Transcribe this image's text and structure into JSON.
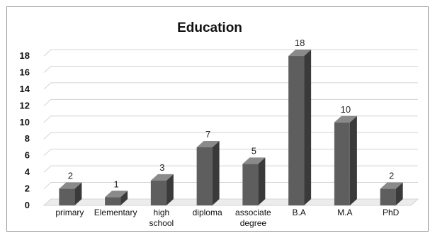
{
  "chart_data": {
    "type": "bar",
    "title": "Education",
    "categories": [
      "primary",
      "Elementary",
      "high school",
      "diploma",
      "associate degree",
      "B.A",
      "M.A",
      "PhD"
    ],
    "category_lines": [
      [
        "primary"
      ],
      [
        "Elementary"
      ],
      [
        "high",
        "school"
      ],
      [
        "diploma"
      ],
      [
        "associate",
        "degree"
      ],
      [
        "B.A"
      ],
      [
        "M.A"
      ],
      [
        "PhD"
      ]
    ],
    "values": [
      2,
      1,
      3,
      7,
      5,
      18,
      10,
      2
    ],
    "yticks": [
      "0",
      "2",
      "4",
      "6",
      "8",
      "10",
      "12",
      "14",
      "16",
      "18"
    ],
    "ylim": [
      0,
      18
    ],
    "grid": true,
    "legend": "none",
    "style": "3d-column",
    "colors": {
      "bar_front": "#5e5e5e",
      "bar_side": "#3a3a3a",
      "bar_top": "#8a8a8a",
      "grid": "#d4d4d4"
    }
  }
}
